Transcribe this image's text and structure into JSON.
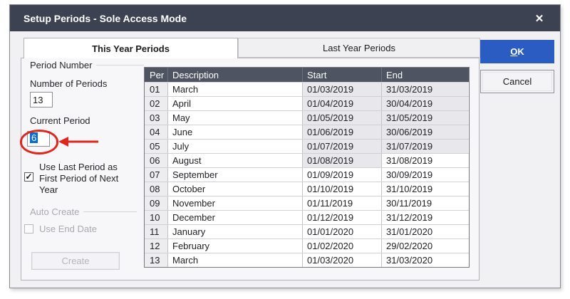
{
  "dialog": {
    "title": "Setup Periods - Sole Access Mode",
    "close_icon": "✕"
  },
  "tabs": [
    {
      "label": "This Year Periods",
      "active": true
    },
    {
      "label": "Last Year Periods",
      "active": false
    }
  ],
  "buttons": {
    "ok_label": "OK",
    "cancel_label": "Cancel",
    "create_label": "Create"
  },
  "left_panel": {
    "period_number_group_label": "Period Number",
    "number_of_periods_label": "Number of Periods",
    "number_of_periods_value": "13",
    "current_period_label": "Current Period",
    "current_period_value": "6",
    "use_last_period_checkbox": {
      "checked": true,
      "check_glyph": "✓",
      "label_lines": [
        "Use Last Period as",
        "First Period of Next",
        "Year"
      ]
    },
    "auto_create_group_label": "Auto Create",
    "use_end_date_checkbox": {
      "checked": false,
      "label": "Use End Date"
    }
  },
  "table": {
    "headers": [
      "Per",
      "Description",
      "Start",
      "End"
    ],
    "rows": [
      {
        "per": "01",
        "description": "March",
        "start": "01/03/2019",
        "end": "31/03/2019",
        "start_shaded": true,
        "end_shaded": true
      },
      {
        "per": "02",
        "description": "April",
        "start": "01/04/2019",
        "end": "30/04/2019",
        "start_shaded": true,
        "end_shaded": true
      },
      {
        "per": "03",
        "description": "May",
        "start": "01/05/2019",
        "end": "31/05/2019",
        "start_shaded": true,
        "end_shaded": true
      },
      {
        "per": "04",
        "description": "June",
        "start": "01/06/2019",
        "end": "30/06/2019",
        "start_shaded": true,
        "end_shaded": true
      },
      {
        "per": "05",
        "description": "July",
        "start": "01/07/2019",
        "end": "31/07/2019",
        "start_shaded": true,
        "end_shaded": true
      },
      {
        "per": "06",
        "description": "August",
        "start": "01/08/2019",
        "end": "31/08/2019",
        "start_shaded": true,
        "end_shaded": false
      },
      {
        "per": "07",
        "description": "September",
        "start": "01/09/2019",
        "end": "30/09/2019",
        "start_shaded": false,
        "end_shaded": false
      },
      {
        "per": "08",
        "description": "October",
        "start": "01/10/2019",
        "end": "31/10/2019",
        "start_shaded": false,
        "end_shaded": false
      },
      {
        "per": "09",
        "description": "November",
        "start": "01/11/2019",
        "end": "30/11/2019",
        "start_shaded": false,
        "end_shaded": false
      },
      {
        "per": "10",
        "description": "December",
        "start": "01/12/2019",
        "end": "31/12/2019",
        "start_shaded": false,
        "end_shaded": false
      },
      {
        "per": "11",
        "description": "January",
        "start": "01/01/2020",
        "end": "31/01/2020",
        "start_shaded": false,
        "end_shaded": false
      },
      {
        "per": "12",
        "description": "February",
        "start": "01/02/2020",
        "end": "29/02/2020",
        "start_shaded": false,
        "end_shaded": false
      },
      {
        "per": "13",
        "description": "March",
        "start": "01/03/2020",
        "end": "31/03/2020",
        "start_shaded": false,
        "end_shaded": false
      }
    ]
  },
  "colors": {
    "titlebar": "#3c4252",
    "table_header": "#4f5462",
    "accent_blue": "#2b5cc2",
    "selection_blue": "#0a6bd2",
    "annotation_red": "#e0251b",
    "shaded_cell": "#e8e8ec"
  }
}
